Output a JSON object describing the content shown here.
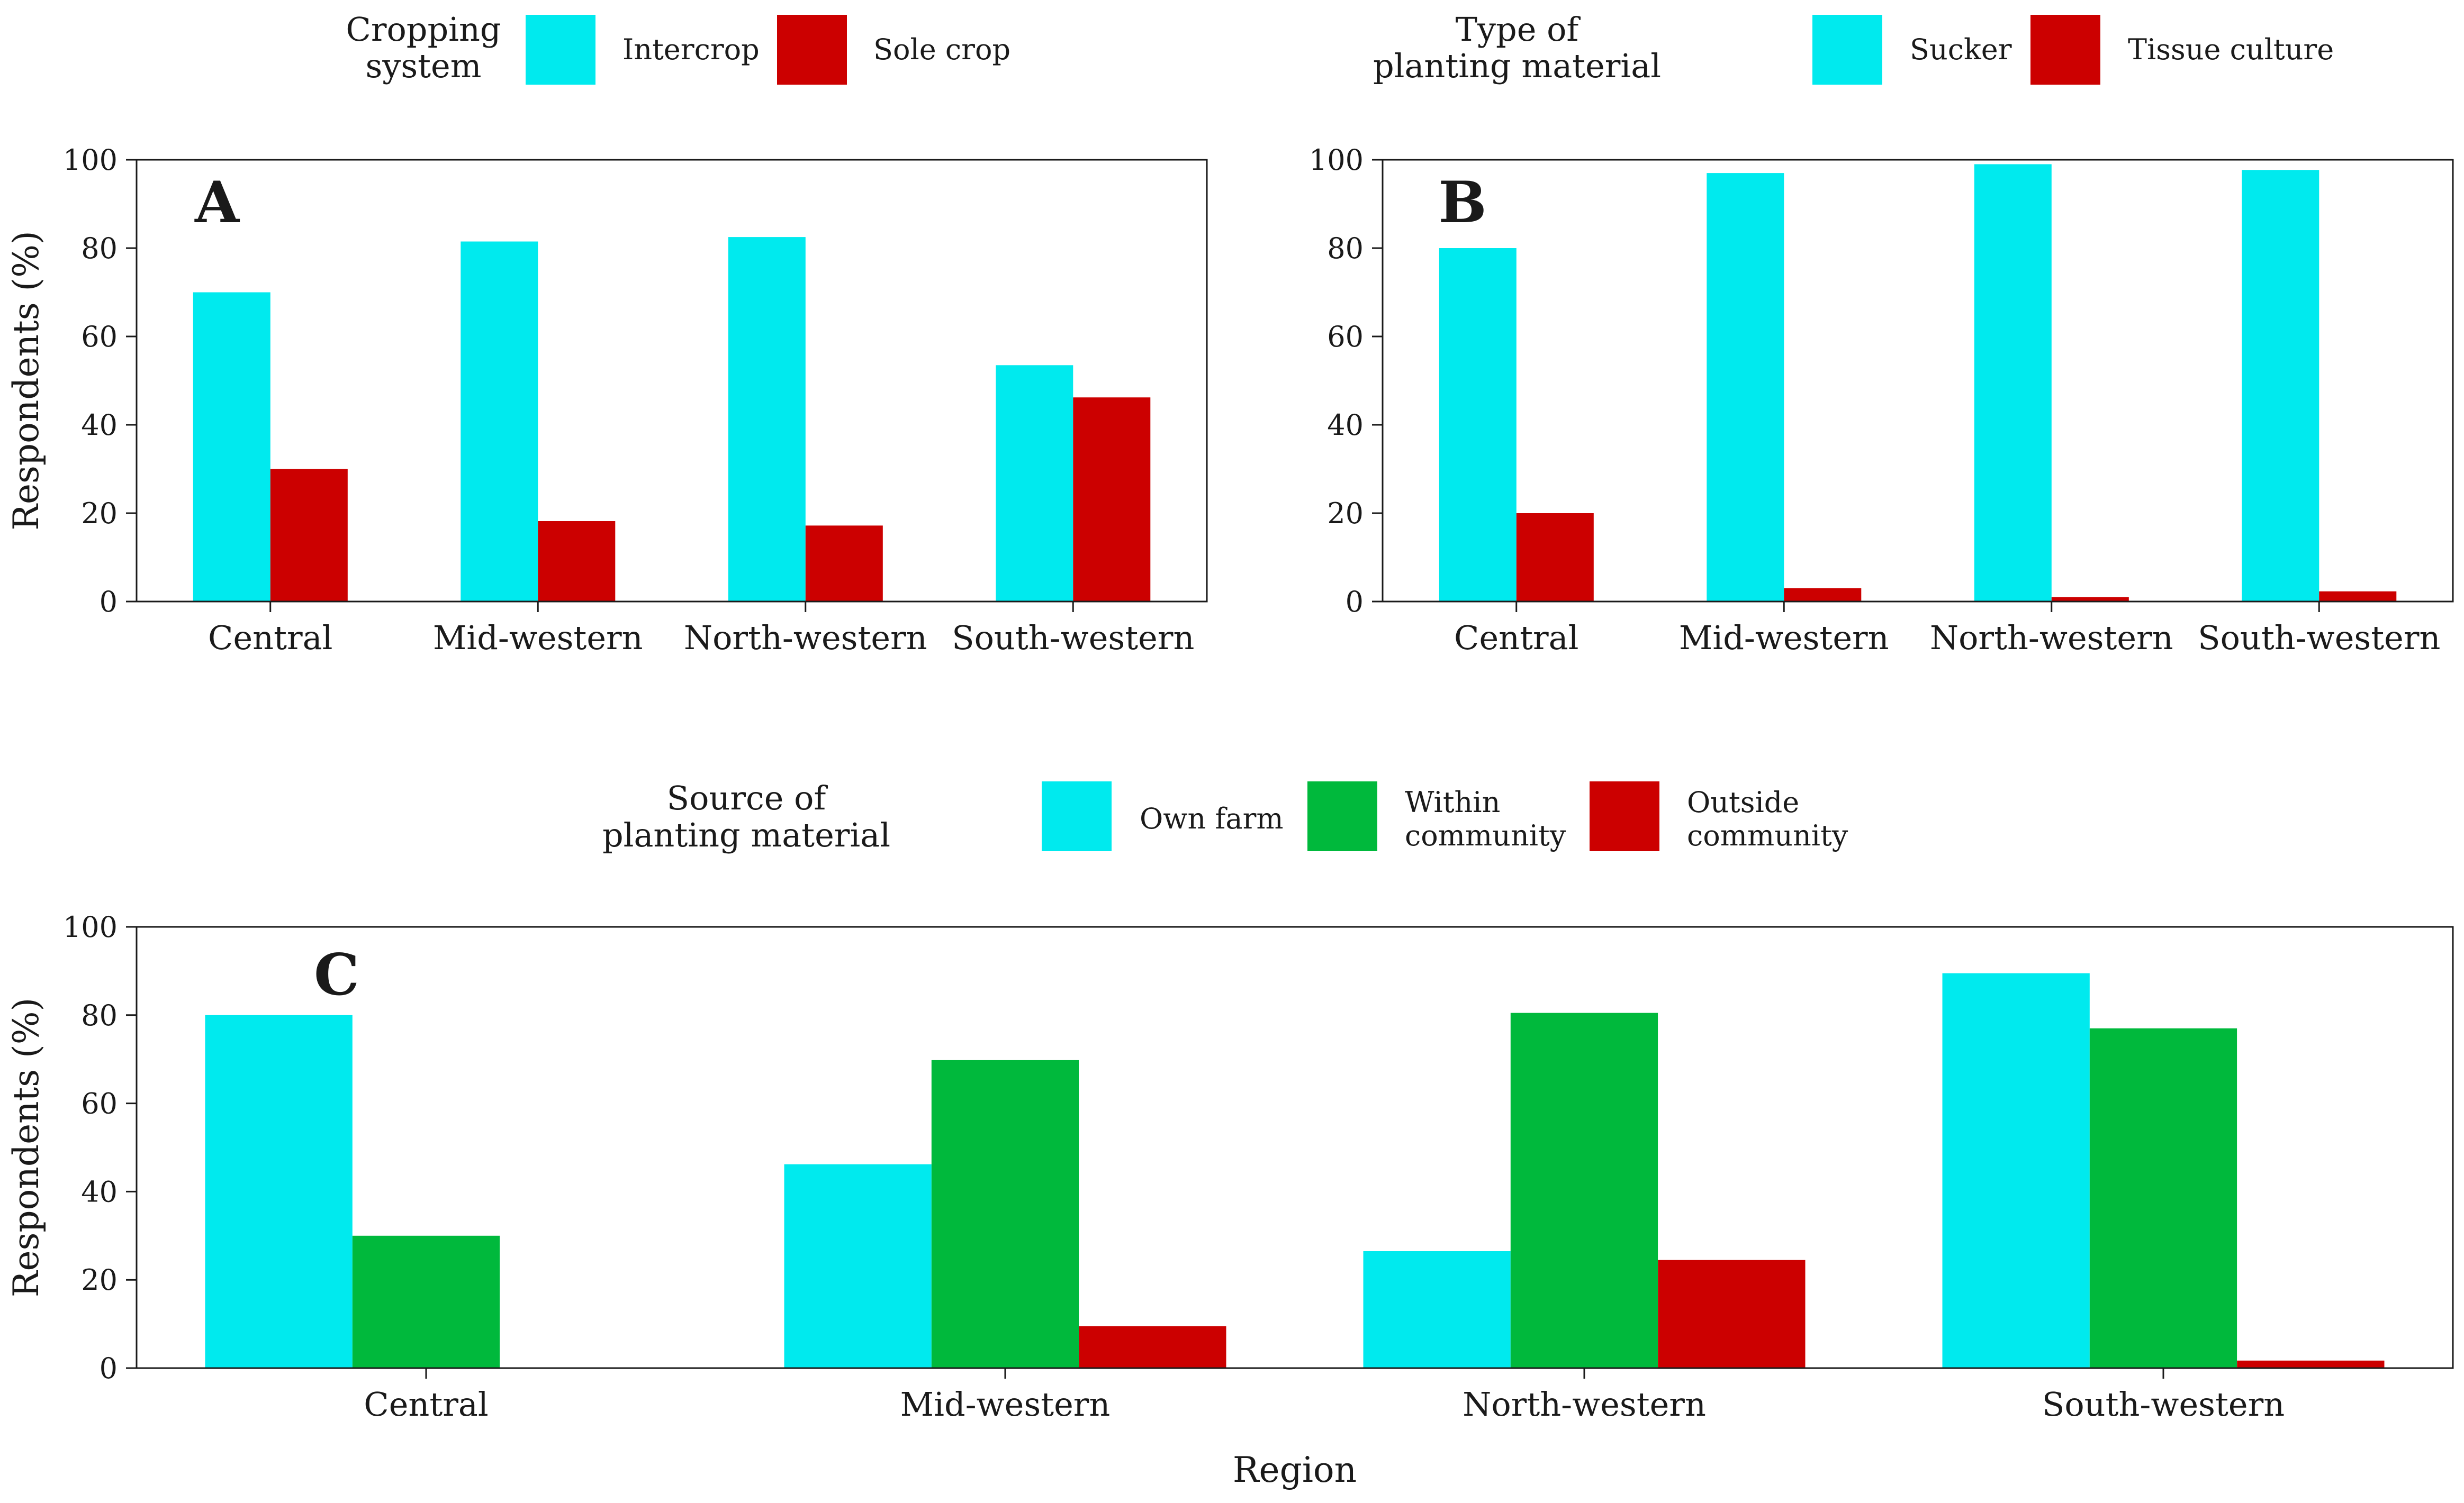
{
  "colors": {
    "cyan": "#00EAEE",
    "red": "#CC0000",
    "green": "#00B93C",
    "axis": "#1A1A1A"
  },
  "chart_data": [
    {
      "id": "A",
      "type": "bar",
      "panel_letter": "A",
      "legend_title": [
        "Cropping",
        "system"
      ],
      "categories": [
        "Central",
        "Mid-western",
        "North-western",
        "South-western"
      ],
      "series": [
        {
          "name": "Intercrop",
          "color": "#00EAEE",
          "values": [
            70,
            81.5,
            82.5,
            53.5
          ]
        },
        {
          "name": "Sole crop",
          "color": "#CC0000",
          "values": [
            30,
            18.2,
            17.2,
            46.2
          ]
        }
      ],
      "ylabel": "Respondents (%)",
      "xlabel": "",
      "ylim": [
        0,
        100
      ],
      "yticks": [
        0,
        20,
        40,
        60,
        80,
        100
      ],
      "legend_position": "top"
    },
    {
      "id": "B",
      "type": "bar",
      "panel_letter": "B",
      "legend_title": [
        "Type of",
        "planting material"
      ],
      "categories": [
        "Central",
        "Mid-western",
        "North-western",
        "South-western"
      ],
      "series": [
        {
          "name": "Sucker",
          "color": "#00EAEE",
          "values": [
            80,
            97,
            99,
            97.7
          ]
        },
        {
          "name": "Tissue culture",
          "color": "#CC0000",
          "values": [
            20,
            3,
            1,
            2.3
          ]
        }
      ],
      "ylabel": "",
      "xlabel": "",
      "ylim": [
        0,
        100
      ],
      "yticks": [
        0,
        20,
        40,
        60,
        80,
        100
      ],
      "legend_position": "top"
    },
    {
      "id": "C",
      "type": "bar",
      "panel_letter": "C",
      "legend_title": [
        "Source of",
        "planting material"
      ],
      "categories": [
        "Central",
        "Mid-western",
        "North-western",
        "South-western"
      ],
      "series": [
        {
          "name": "Own farm",
          "label_lines": [
            "Own farm"
          ],
          "color": "#00EAEE",
          "values": [
            80,
            46.2,
            26.5,
            89.5
          ]
        },
        {
          "name": "Within community",
          "label_lines": [
            "Within",
            "community"
          ],
          "color": "#00B93C",
          "values": [
            30,
            69.8,
            80.5,
            77
          ]
        },
        {
          "name": "Outside community",
          "label_lines": [
            "Outside",
            "community"
          ],
          "color": "#CC0000",
          "values": [
            null,
            9.5,
            24.5,
            1.7
          ]
        }
      ],
      "ylabel": "Respondents (%)",
      "xlabel": "Region",
      "ylim": [
        0,
        100
      ],
      "yticks": [
        0,
        20,
        40,
        60,
        80,
        100
      ],
      "legend_position": "top"
    }
  ]
}
